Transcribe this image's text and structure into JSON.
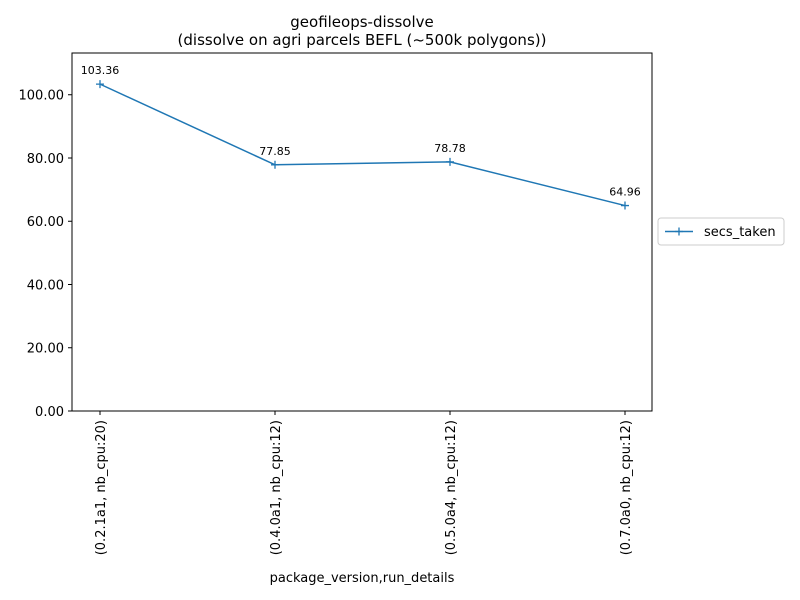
{
  "chart_data": {
    "type": "line",
    "title": "geofileops-dissolve",
    "subtitle": "(dissolve on agri parcels BEFL (~500k polygons))",
    "xlabel": "package_version,run_details",
    "ylabel": "",
    "categories": [
      "(0.2.1a1, nb_cpu:20)",
      "(0.4.0a1, nb_cpu:12)",
      "(0.5.0a4, nb_cpu:12)",
      "(0.7.0a0, nb_cpu:12)"
    ],
    "series": [
      {
        "name": "secs_taken",
        "values": [
          103.36,
          77.85,
          78.78,
          64.96
        ],
        "labels": [
          "103.36",
          "77.85",
          "78.78",
          "64.96"
        ],
        "color": "#1f77b4",
        "marker": "plus"
      }
    ],
    "ylim": [
      0,
      113.2
    ],
    "yticks": [
      0,
      20,
      40,
      60,
      80,
      100
    ],
    "ytick_labels": [
      "0.00",
      "20.00",
      "40.00",
      "60.00",
      "80.00",
      "100.00"
    ],
    "grid": false,
    "legend": "right"
  }
}
